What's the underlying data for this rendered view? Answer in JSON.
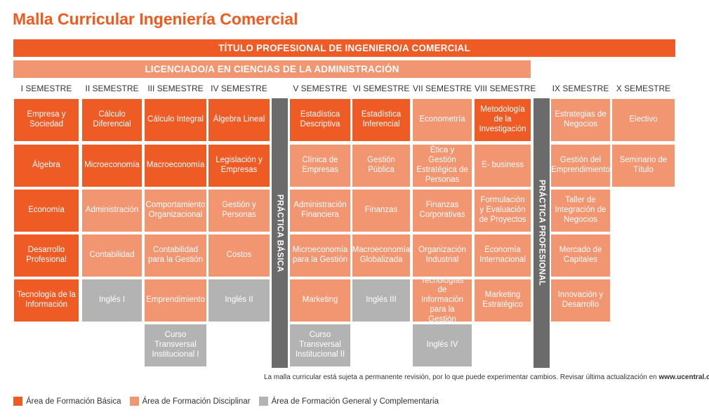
{
  "title": "Malla Curricular Ingeniería Comercial",
  "titulo_profesional": "TÍTULO PROFESIONAL DE INGENIERO/A COMERCIAL",
  "licenciado": "LICENCIADO/A EN CIENCIAS DE LA ADMINISTRACIÓN",
  "colors": {
    "basica": "#ef5b25",
    "disciplinar": "#f29672",
    "general": "#b3b3b3",
    "practica": "#6b6b6b",
    "title": "#f05a1e"
  },
  "semesters": [
    {
      "label": "I SEMESTRE",
      "courses": [
        {
          "name": "Empresa y Sociedad",
          "area": "basica"
        },
        {
          "name": "Álgebra",
          "area": "basica"
        },
        {
          "name": "Economía",
          "area": "basica"
        },
        {
          "name": "Desarrollo Profesional",
          "area": "basica"
        },
        {
          "name": "Tecnología de la Información",
          "area": "basica"
        }
      ]
    },
    {
      "label": "II SEMESTRE",
      "courses": [
        {
          "name": "Cálculo Diferencial",
          "area": "basica"
        },
        {
          "name": "Microeconomía",
          "area": "basica"
        },
        {
          "name": "Administración",
          "area": "disciplinar"
        },
        {
          "name": "Contabilidad",
          "area": "disciplinar"
        },
        {
          "name": "Inglés I",
          "area": "general"
        }
      ]
    },
    {
      "label": "III SEMESTRE",
      "courses": [
        {
          "name": "Cálculo Integral",
          "area": "basica"
        },
        {
          "name": "Macroeconomía",
          "area": "basica"
        },
        {
          "name": "Comportamiento Organizacional",
          "area": "disciplinar"
        },
        {
          "name": "Contabilidad para la Gestión",
          "area": "disciplinar"
        },
        {
          "name": "Emprendimiento",
          "area": "disciplinar"
        },
        {
          "name": "Curso Transversal Institucional I",
          "area": "general"
        }
      ]
    },
    {
      "label": "IV SEMESTRE",
      "courses": [
        {
          "name": "Álgebra Lineal",
          "area": "basica"
        },
        {
          "name": "Legislación y Empresas",
          "area": "basica"
        },
        {
          "name": "Gestión y Personas",
          "area": "disciplinar"
        },
        {
          "name": "Costos",
          "area": "disciplinar"
        },
        {
          "name": "Inglés II",
          "area": "general"
        }
      ]
    },
    {
      "label": "V SEMESTRE",
      "courses": [
        {
          "name": "Estadística Descriptiva",
          "area": "basica"
        },
        {
          "name": "Clínica de Empresas",
          "area": "disciplinar"
        },
        {
          "name": "Administración Financiera",
          "area": "disciplinar"
        },
        {
          "name": "Microeconomía para la Gestión",
          "area": "disciplinar"
        },
        {
          "name": "Marketing",
          "area": "disciplinar"
        },
        {
          "name": "Curso Transversal Institucional II",
          "area": "general"
        }
      ]
    },
    {
      "label": "VI SEMESTRE",
      "courses": [
        {
          "name": "Estadística Inferencial",
          "area": "basica"
        },
        {
          "name": "Gestión Pública",
          "area": "disciplinar"
        },
        {
          "name": "Finanzas",
          "area": "disciplinar"
        },
        {
          "name": "Macroeconomía Globalizada",
          "area": "disciplinar"
        },
        {
          "name": "Inglés III",
          "area": "general"
        }
      ]
    },
    {
      "label": "VII SEMESTRE",
      "courses": [
        {
          "name": "Econometría",
          "area": "disciplinar"
        },
        {
          "name": "Ética y Gestión Estratégica de Personas",
          "area": "disciplinar"
        },
        {
          "name": "Finanzas Corporativas",
          "area": "disciplinar"
        },
        {
          "name": "Organización Industrial",
          "area": "disciplinar"
        },
        {
          "name": "Tecnologías de Información para la Gestión",
          "area": "disciplinar"
        },
        {
          "name": "Inglés IV",
          "area": "general"
        }
      ]
    },
    {
      "label": "VIII SEMESTRE",
      "courses": [
        {
          "name": "Metodología de la Investigación",
          "area": "basica"
        },
        {
          "name": "E- business",
          "area": "disciplinar"
        },
        {
          "name": "Formulación y Evaluación de Proyectos",
          "area": "disciplinar"
        },
        {
          "name": "Economía Internacional",
          "area": "disciplinar"
        },
        {
          "name": "Marketing Estratégico",
          "area": "disciplinar"
        }
      ]
    },
    {
      "label": "IX SEMESTRE",
      "courses": [
        {
          "name": "Estrategias de Negocios",
          "area": "disciplinar"
        },
        {
          "name": "Gestión del Emprendimiento",
          "area": "disciplinar"
        },
        {
          "name": "Taller de Integración de Negocios",
          "area": "disciplinar"
        },
        {
          "name": "Mercado de Capitales",
          "area": "disciplinar"
        },
        {
          "name": "Innovación y Desarrollo",
          "area": "disciplinar"
        }
      ]
    },
    {
      "label": "X SEMESTRE",
      "courses": [
        {
          "name": "Electivo",
          "area": "disciplinar"
        },
        {
          "name": "Seminario de Título",
          "area": "disciplinar"
        }
      ]
    }
  ],
  "practica_basica": "PRÁCTICA BÁSICA",
  "practica_profesional": "PRÁCTICA PROFESIONAL",
  "footnote_text": "La malla curricular está sujeta a permanente revisión, por lo que puede experimentar cambios. Revisar última actualización en ",
  "footnote_url": "www.ucentral.cl",
  "legend": [
    {
      "label": "Área de Formación Básica",
      "area": "basica"
    },
    {
      "label": "Área de Formación Disciplinar",
      "area": "disciplinar"
    },
    {
      "label": "Área de Formación General y Complementaria",
      "area": "general"
    }
  ]
}
